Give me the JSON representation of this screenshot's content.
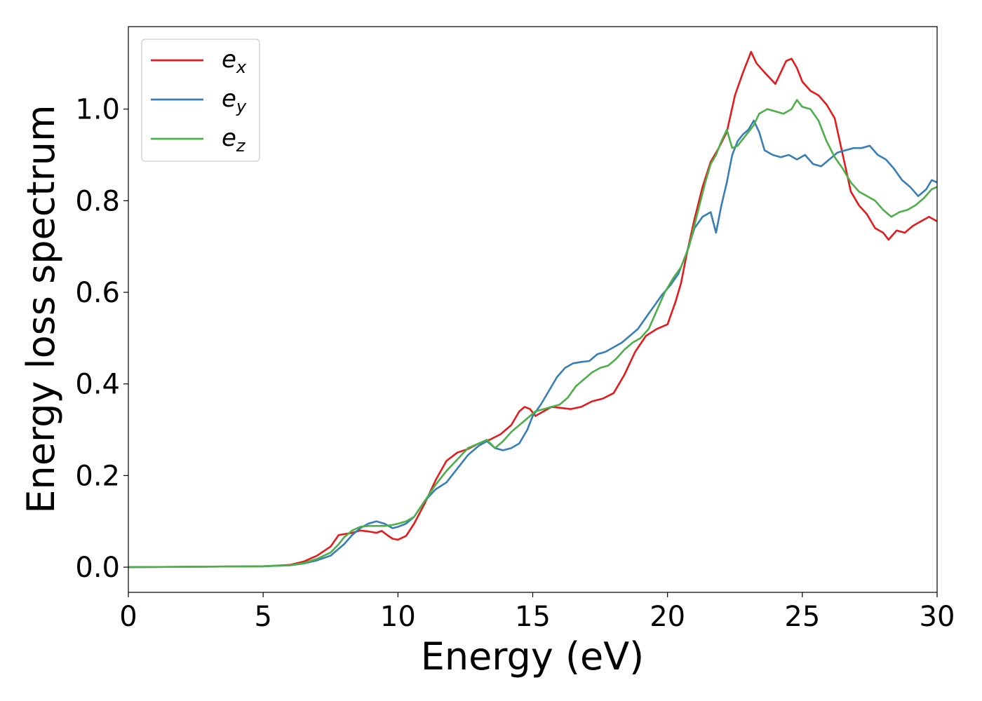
{
  "chart_data": {
    "type": "line",
    "xlabel": "Energy (eV)",
    "ylabel": "Energy loss spectrum",
    "xlim": [
      0,
      30
    ],
    "ylim": [
      -0.055,
      1.18
    ],
    "xticks": [
      0,
      5,
      10,
      15,
      20,
      25,
      30
    ],
    "yticks": [
      0.0,
      0.2,
      0.4,
      0.6,
      0.8,
      1.0
    ],
    "xtick_labels": [
      "0",
      "5",
      "10",
      "15",
      "20",
      "25",
      "30"
    ],
    "ytick_labels": [
      "0.0",
      "0.2",
      "0.4",
      "0.6",
      "0.8",
      "1.0"
    ],
    "grid": false,
    "legend_position": "top-left",
    "series": [
      {
        "name": "e",
        "subscript": "x",
        "color": "#e41a1c",
        "x": [
          0,
          5,
          6,
          6.5,
          7,
          7.5,
          7.8,
          8.0,
          8.3,
          8.6,
          8.9,
          9.2,
          9.4,
          9.6,
          9.8,
          10.0,
          10.3,
          10.6,
          11.0,
          11.4,
          11.8,
          12.2,
          12.6,
          13.0,
          13.4,
          13.8,
          14.2,
          14.5,
          14.7,
          14.9,
          15.1,
          15.4,
          15.7,
          16.0,
          16.4,
          16.8,
          17.2,
          17.6,
          18.0,
          18.4,
          18.8,
          19.2,
          19.6,
          20.0,
          20.3,
          20.5,
          20.7,
          21.0,
          21.3,
          21.6,
          21.9,
          22.2,
          22.5,
          22.8,
          23.0,
          23.1,
          23.3,
          23.6,
          24.0,
          24.2,
          24.4,
          24.6,
          24.8,
          25.0,
          25.3,
          25.6,
          25.9,
          26.2,
          26.5,
          26.8,
          27.1,
          27.4,
          27.7,
          28.0,
          28.2,
          28.5,
          28.8,
          29.1,
          29.4,
          29.7,
          30.0
        ],
        "y": [
          0.0,
          0.002,
          0.005,
          0.012,
          0.025,
          0.045,
          0.07,
          0.072,
          0.075,
          0.08,
          0.078,
          0.075,
          0.079,
          0.07,
          0.062,
          0.06,
          0.068,
          0.095,
          0.14,
          0.19,
          0.232,
          0.25,
          0.258,
          0.27,
          0.278,
          0.29,
          0.31,
          0.34,
          0.35,
          0.345,
          0.33,
          0.34,
          0.35,
          0.348,
          0.345,
          0.35,
          0.362,
          0.368,
          0.38,
          0.42,
          0.47,
          0.505,
          0.52,
          0.53,
          0.58,
          0.62,
          0.68,
          0.76,
          0.83,
          0.885,
          0.915,
          0.95,
          1.03,
          1.08,
          1.11,
          1.125,
          1.1,
          1.08,
          1.055,
          1.08,
          1.105,
          1.11,
          1.09,
          1.06,
          1.04,
          1.03,
          1.01,
          0.98,
          0.9,
          0.82,
          0.79,
          0.77,
          0.74,
          0.73,
          0.715,
          0.735,
          0.73,
          0.745,
          0.755,
          0.765,
          0.755
        ]
      },
      {
        "name": "e",
        "subscript": "y",
        "color": "#377eb8",
        "x": [
          0,
          5,
          6,
          6.5,
          7,
          7.5,
          7.8,
          8.0,
          8.3,
          8.6,
          8.9,
          9.2,
          9.5,
          9.8,
          10.0,
          10.3,
          10.6,
          11.0,
          11.4,
          11.8,
          12.2,
          12.6,
          13.0,
          13.3,
          13.6,
          13.9,
          14.2,
          14.5,
          14.8,
          15.0,
          15.3,
          15.6,
          15.9,
          16.2,
          16.5,
          16.8,
          17.1,
          17.4,
          17.7,
          18.0,
          18.3,
          18.6,
          18.9,
          19.2,
          19.5,
          19.8,
          20.1,
          20.4,
          20.7,
          21.0,
          21.3,
          21.6,
          21.8,
          22.0,
          22.2,
          22.4,
          22.6,
          22.8,
          23.0,
          23.2,
          23.4,
          23.6,
          23.9,
          24.2,
          24.5,
          24.8,
          25.1,
          25.4,
          25.7,
          26.0,
          26.3,
          26.6,
          26.9,
          27.2,
          27.5,
          27.8,
          28.1,
          28.4,
          28.7,
          29.0,
          29.3,
          29.6,
          29.8,
          30.0
        ],
        "y": [
          0.0,
          0.002,
          0.004,
          0.008,
          0.015,
          0.025,
          0.04,
          0.05,
          0.07,
          0.085,
          0.095,
          0.1,
          0.095,
          0.085,
          0.088,
          0.095,
          0.11,
          0.145,
          0.17,
          0.185,
          0.215,
          0.245,
          0.265,
          0.275,
          0.26,
          0.255,
          0.26,
          0.27,
          0.3,
          0.33,
          0.355,
          0.385,
          0.415,
          0.435,
          0.445,
          0.448,
          0.45,
          0.465,
          0.47,
          0.48,
          0.49,
          0.505,
          0.52,
          0.545,
          0.57,
          0.595,
          0.615,
          0.64,
          0.685,
          0.74,
          0.765,
          0.775,
          0.73,
          0.79,
          0.84,
          0.9,
          0.93,
          0.945,
          0.955,
          0.975,
          0.95,
          0.91,
          0.9,
          0.895,
          0.9,
          0.89,
          0.9,
          0.88,
          0.875,
          0.89,
          0.905,
          0.91,
          0.915,
          0.915,
          0.92,
          0.9,
          0.89,
          0.87,
          0.845,
          0.83,
          0.81,
          0.825,
          0.845,
          0.84
        ]
      },
      {
        "name": "e",
        "subscript": "z",
        "color": "#4daf4a",
        "x": [
          0,
          5,
          6,
          6.5,
          7,
          7.5,
          7.8,
          8.0,
          8.3,
          8.6,
          8.9,
          9.2,
          9.5,
          9.8,
          10.0,
          10.3,
          10.6,
          11.0,
          11.4,
          11.8,
          12.2,
          12.6,
          13.0,
          13.3,
          13.6,
          13.9,
          14.2,
          14.5,
          14.8,
          15.1,
          15.4,
          15.7,
          16.0,
          16.3,
          16.6,
          16.9,
          17.2,
          17.5,
          17.8,
          18.1,
          18.4,
          18.7,
          19.0,
          19.3,
          19.6,
          19.9,
          20.2,
          20.5,
          20.8,
          21.1,
          21.4,
          21.6,
          21.8,
          22.0,
          22.2,
          22.4,
          22.6,
          22.8,
          23.0,
          23.2,
          23.4,
          23.7,
          24.0,
          24.3,
          24.6,
          24.8,
          25.0,
          25.3,
          25.6,
          25.9,
          26.2,
          26.5,
          26.8,
          27.1,
          27.4,
          27.7,
          28.0,
          28.3,
          28.6,
          28.9,
          29.2,
          29.5,
          29.8,
          30.0
        ],
        "y": [
          0.0,
          0.002,
          0.004,
          0.009,
          0.018,
          0.032,
          0.05,
          0.065,
          0.08,
          0.088,
          0.09,
          0.09,
          0.09,
          0.092,
          0.095,
          0.1,
          0.11,
          0.145,
          0.18,
          0.21,
          0.235,
          0.26,
          0.27,
          0.278,
          0.26,
          0.275,
          0.295,
          0.31,
          0.325,
          0.34,
          0.345,
          0.35,
          0.355,
          0.37,
          0.395,
          0.41,
          0.425,
          0.435,
          0.44,
          0.455,
          0.475,
          0.49,
          0.5,
          0.52,
          0.56,
          0.6,
          0.63,
          0.655,
          0.7,
          0.77,
          0.84,
          0.88,
          0.9,
          0.93,
          0.955,
          0.915,
          0.92,
          0.935,
          0.95,
          0.965,
          0.99,
          1.0,
          0.995,
          0.99,
          1.0,
          1.02,
          1.005,
          1.0,
          0.975,
          0.93,
          0.895,
          0.87,
          0.84,
          0.82,
          0.81,
          0.8,
          0.78,
          0.765,
          0.775,
          0.78,
          0.79,
          0.805,
          0.825,
          0.83
        ]
      }
    ]
  }
}
